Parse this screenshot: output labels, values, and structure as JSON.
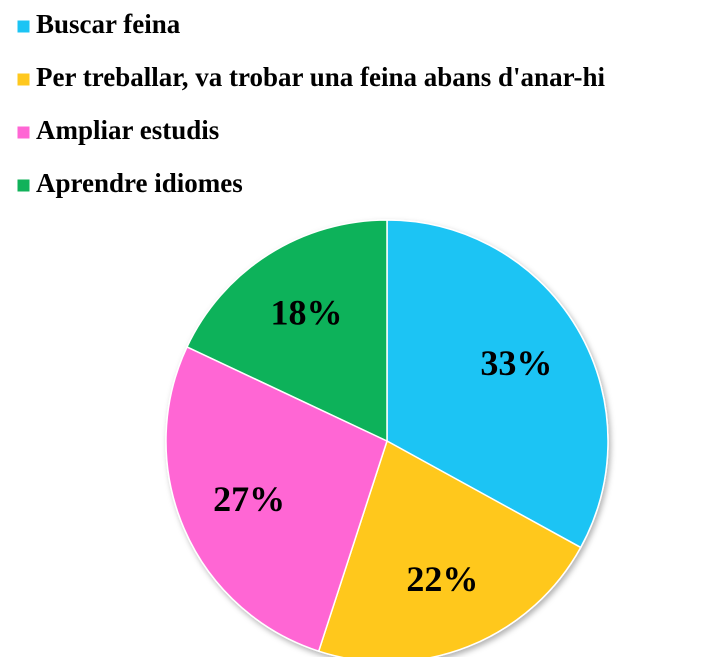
{
  "chart_data": {
    "type": "pie",
    "categories": [
      "Buscar feina",
      "Per treballar, va trobar una feina abans d'anar-hi",
      "Ampliar estudis",
      "Aprendre idiomes"
    ],
    "values": [
      33,
      22,
      27,
      18
    ],
    "value_labels": [
      "33%",
      "22%",
      "27%",
      "18%"
    ],
    "colors": [
      "#1cc4f4",
      "#ffc81e",
      "#ff66d4",
      "#10b25a"
    ],
    "legend": "top-left"
  }
}
